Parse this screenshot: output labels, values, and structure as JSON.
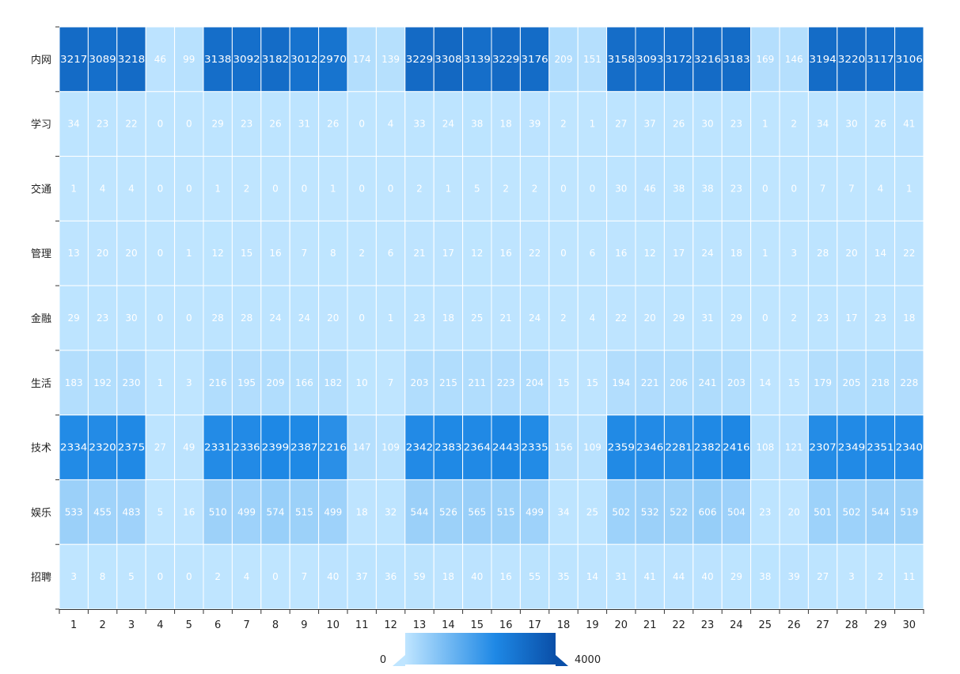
{
  "chart_data": {
    "type": "heatmap",
    "x_categories": [
      "1",
      "2",
      "3",
      "4",
      "5",
      "6",
      "7",
      "8",
      "9",
      "10",
      "11",
      "12",
      "13",
      "14",
      "15",
      "16",
      "17",
      "18",
      "19",
      "20",
      "21",
      "22",
      "23",
      "24",
      "25",
      "26",
      "27",
      "28",
      "29",
      "30"
    ],
    "y_categories": [
      "内网",
      "学习",
      "交通",
      "管理",
      "金融",
      "生活",
      "技术",
      "娱乐",
      "招聘"
    ],
    "values": [
      [
        3217,
        3089,
        3218,
        46,
        99,
        3138,
        3092,
        3182,
        3012,
        2970,
        174,
        139,
        3229,
        3308,
        3139,
        3229,
        3176,
        209,
        151,
        3158,
        3093,
        3172,
        3216,
        3183,
        169,
        146,
        3194,
        3220,
        3117,
        3106
      ],
      [
        34,
        23,
        22,
        0,
        0,
        29,
        23,
        26,
        31,
        26,
        0,
        4,
        33,
        24,
        38,
        18,
        39,
        2,
        1,
        27,
        37,
        26,
        30,
        23,
        1,
        2,
        34,
        30,
        26,
        41
      ],
      [
        1,
        4,
        4,
        0,
        0,
        1,
        2,
        0,
        0,
        1,
        0,
        0,
        2,
        1,
        5,
        2,
        2,
        0,
        0,
        30,
        46,
        38,
        38,
        23,
        0,
        0,
        7,
        7,
        4,
        1
      ],
      [
        13,
        20,
        20,
        0,
        1,
        12,
        15,
        16,
        7,
        8,
        2,
        6,
        21,
        17,
        12,
        16,
        22,
        0,
        6,
        16,
        12,
        17,
        24,
        18,
        1,
        3,
        28,
        20,
        14,
        22
      ],
      [
        29,
        23,
        30,
        0,
        0,
        28,
        28,
        24,
        24,
        20,
        0,
        1,
        23,
        18,
        25,
        21,
        24,
        2,
        4,
        22,
        20,
        29,
        31,
        29,
        0,
        2,
        23,
        17,
        23,
        18
      ],
      [
        183,
        192,
        230,
        1,
        3,
        216,
        195,
        209,
        166,
        182,
        10,
        7,
        203,
        215,
        211,
        223,
        204,
        15,
        15,
        194,
        221,
        206,
        241,
        203,
        14,
        15,
        179,
        205,
        218,
        228
      ],
      [
        2334,
        2320,
        2375,
        27,
        49,
        2331,
        2336,
        2399,
        2387,
        2216,
        147,
        109,
        2342,
        2383,
        2364,
        2443,
        2335,
        156,
        109,
        2359,
        2346,
        2281,
        2382,
        2416,
        108,
        121,
        2307,
        2349,
        2351,
        2340
      ],
      [
        533,
        455,
        483,
        5,
        16,
        510,
        499,
        574,
        515,
        499,
        18,
        32,
        544,
        526,
        565,
        515,
        499,
        34,
        25,
        502,
        532,
        522,
        606,
        504,
        23,
        20,
        501,
        502,
        544,
        519
      ],
      [
        3,
        8,
        5,
        0,
        0,
        2,
        4,
        0,
        7,
        40,
        37,
        36,
        59,
        18,
        40,
        16,
        55,
        35,
        14,
        31,
        41,
        44,
        40,
        29,
        38,
        39,
        27,
        3,
        2,
        11
      ]
    ],
    "visual_map": {
      "min": 0,
      "max": 4000,
      "min_label": "0",
      "max_label": "4000",
      "colors": [
        "#bfe5ff",
        "#1e88e5",
        "#0a4fa8"
      ]
    }
  }
}
